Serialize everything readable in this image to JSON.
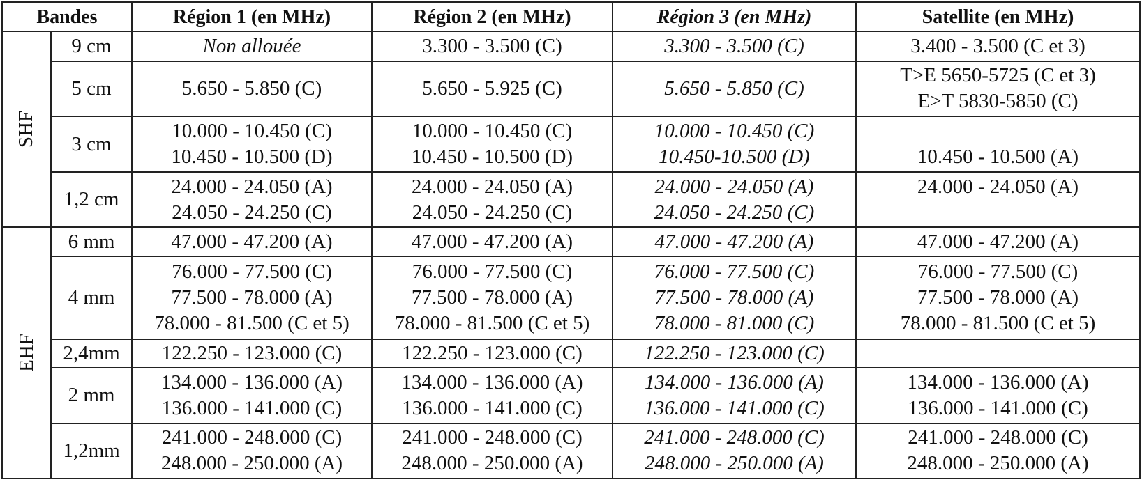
{
  "headers": {
    "bands": "Bandes",
    "region1": "Région 1 (en MHz)",
    "region2": "Région 2 (en MHz)",
    "region3": "Région 3 (en MHz)",
    "satellite": "Satellite (en MHz)"
  },
  "groups": {
    "shf": "SHF",
    "ehf": "EHF"
  },
  "rows": [
    {
      "band": "9 cm",
      "r1": [
        "Non allouée"
      ],
      "r2": [
        "3.300 - 3.500 (C)"
      ],
      "r3": [
        "3.300 - 3.500 (C)"
      ],
      "sat": [
        "3.400 - 3.500 (C et 3)"
      ]
    },
    {
      "band": "5 cm",
      "r1": [
        "5.650 - 5.850 (C)"
      ],
      "r2": [
        "5.650 - 5.925 (C)"
      ],
      "r3": [
        "5.650 - 5.850 (C)"
      ],
      "sat": [
        "T>E 5650-5725 (C et 3)",
        "E>T 5830-5850 (C)"
      ]
    },
    {
      "band": "3 cm",
      "r1": [
        "10.000 - 10.450 (C)",
        "10.450 - 10.500 (D)"
      ],
      "r2": [
        "10.000 - 10.450 (C)",
        "10.450 - 10.500 (D)"
      ],
      "r3": [
        "10.000 - 10.450 (C)",
        "10.450-10.500 (D)"
      ],
      "sat": [
        "",
        "10.450 - 10.500 (A)"
      ]
    },
    {
      "band": "1,2 cm",
      "r1": [
        "24.000 - 24.050 (A)",
        "24.050 - 24.250 (C)"
      ],
      "r2": [
        "24.000 - 24.050 (A)",
        "24.050 - 24.250 (C)"
      ],
      "r3": [
        "24.000 - 24.050 (A)",
        "24.050 - 24.250 (C)"
      ],
      "sat": [
        "24.000 - 24.050 (A)",
        ""
      ]
    },
    {
      "band": "6 mm",
      "r1": [
        "47.000 - 47.200 (A)"
      ],
      "r2": [
        "47.000 - 47.200 (A)"
      ],
      "r3": [
        "47.000 - 47.200 (A)"
      ],
      "sat": [
        "47.000 - 47.200 (A)"
      ]
    },
    {
      "band": "4 mm",
      "r1": [
        "76.000 - 77.500 (C)",
        "77.500 - 78.000 (A)",
        "78.000 - 81.500 (C et 5)"
      ],
      "r2": [
        "76.000 - 77.500 (C)",
        "77.500 - 78.000 (A)",
        "78.000 - 81.500 (C et 5)"
      ],
      "r3": [
        "76.000 - 77.500 (C)",
        "77.500 - 78.000 (A)",
        "78.000 - 81.000 (C)"
      ],
      "sat": [
        "76.000 - 77.500 (C)",
        "77.500 - 78.000 (A)",
        "78.000 - 81.500 (C et 5)"
      ]
    },
    {
      "band": "2,4mm",
      "r1": [
        "122.250 - 123.000 (C)"
      ],
      "r2": [
        "122.250 - 123.000 (C)"
      ],
      "r3": [
        "122.250 - 123.000 (C)"
      ],
      "sat": [
        ""
      ]
    },
    {
      "band": "2 mm",
      "r1": [
        "134.000 - 136.000 (A)",
        "136.000 - 141.000 (C)"
      ],
      "r2": [
        "134.000 - 136.000 (A)",
        "136.000 - 141.000 (C)"
      ],
      "r3": [
        "134.000 - 136.000 (A)",
        "136.000 - 141.000 (C)"
      ],
      "sat": [
        "134.000 - 136.000 (A)",
        "136.000 - 141.000 (C)"
      ]
    },
    {
      "band": "1,2mm",
      "r1": [
        "241.000 - 248.000 (C)",
        "248.000 - 250.000 (A)"
      ],
      "r2": [
        "241.000 - 248.000 (C)",
        "248.000 - 250.000 (A)"
      ],
      "r3": [
        "241.000 - 248.000 (C)",
        "248.000 - 250.000 (A)"
      ],
      "sat": [
        "241.000 - 248.000 (C)",
        "248.000 - 250.000 (A)"
      ]
    }
  ]
}
